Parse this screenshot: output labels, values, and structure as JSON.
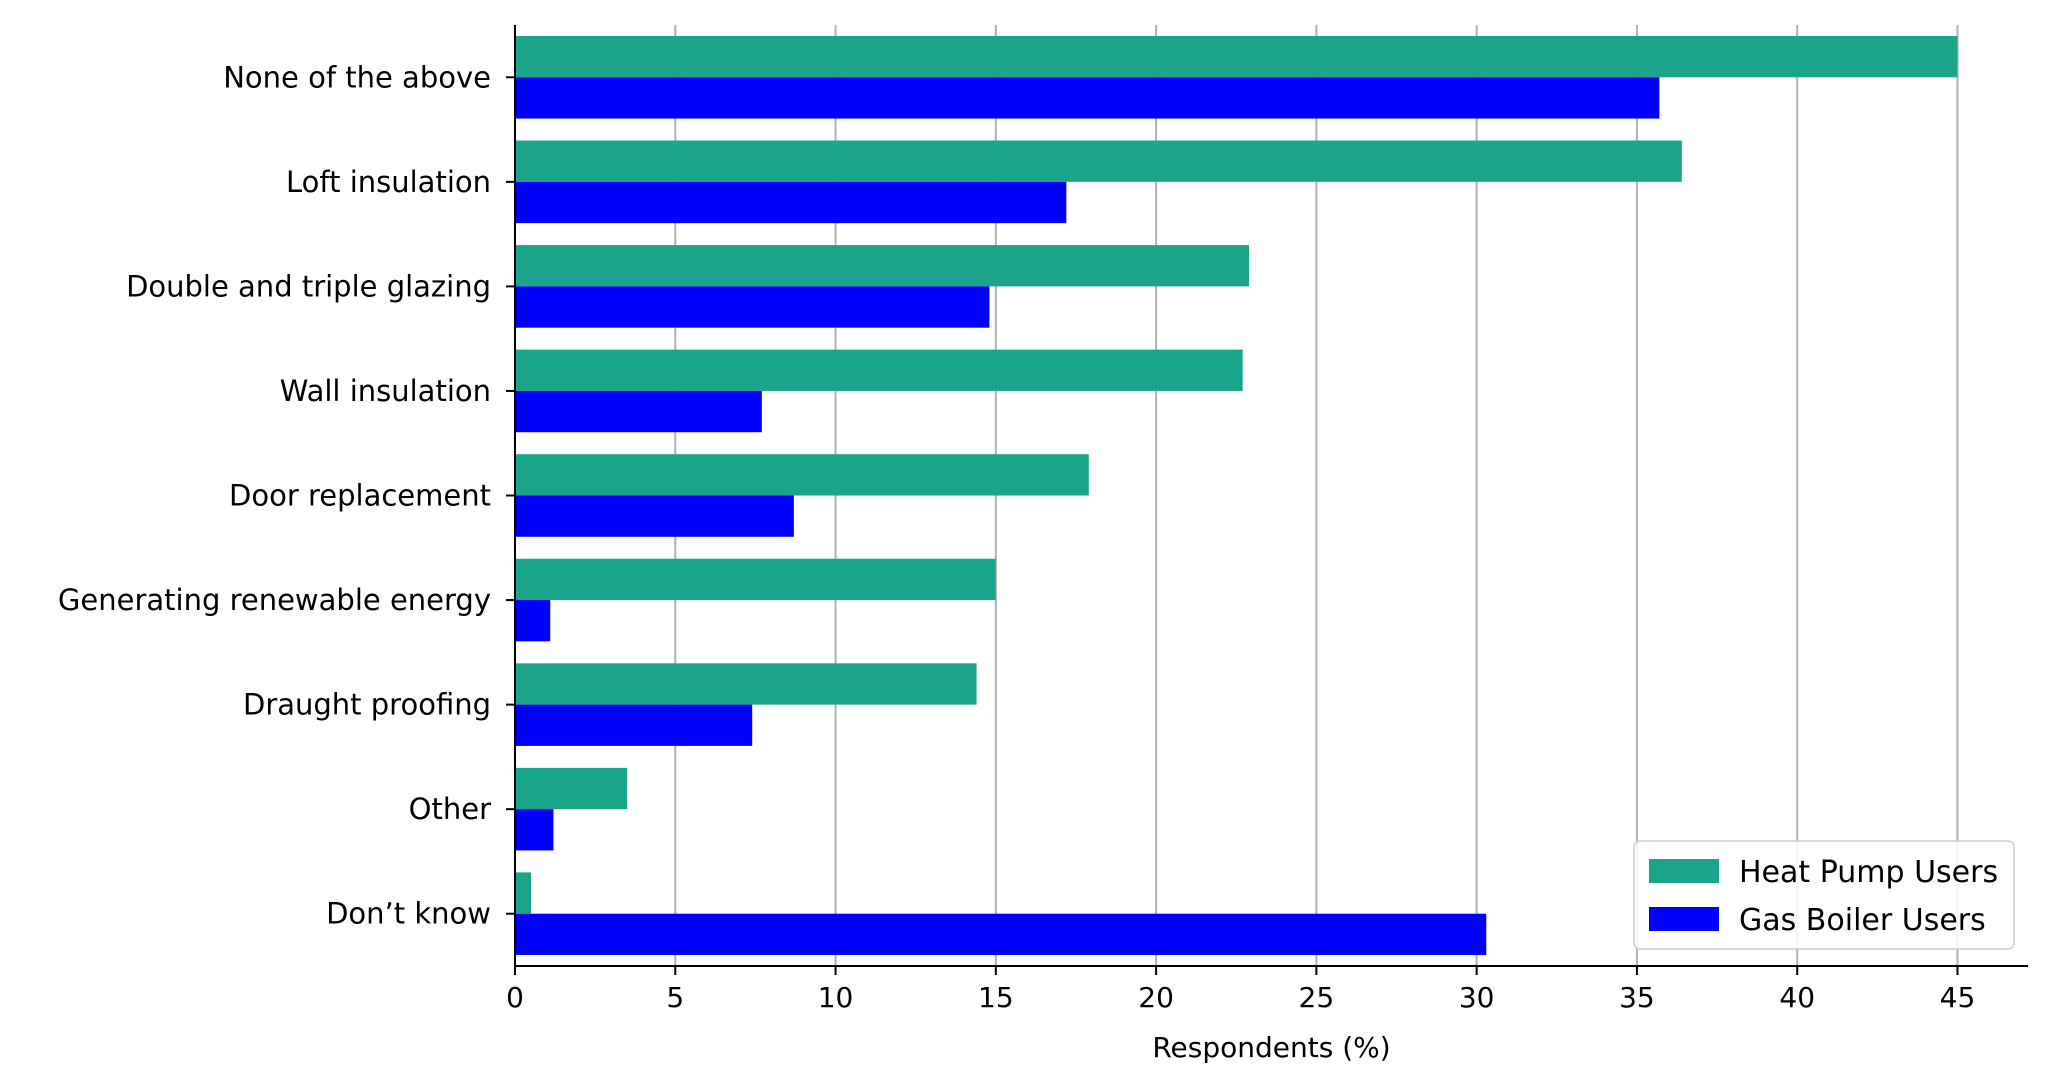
{
  "chart_data": {
    "type": "bar",
    "orientation": "horizontal",
    "categories": [
      "None of the above",
      "Loft insulation",
      "Double and triple glazing",
      "Wall insulation",
      "Door replacement",
      "Generating renewable energy",
      "Draught proofing",
      "Other",
      "Don’t know"
    ],
    "series": [
      {
        "name": "Heat Pump Users",
        "color": "#1aa58b",
        "values": [
          45.0,
          36.4,
          22.9,
          22.7,
          17.9,
          15.0,
          14.4,
          3.5,
          0.5
        ]
      },
      {
        "name": "Gas Boiler Users",
        "color": "#0000ff",
        "values": [
          35.7,
          17.2,
          14.8,
          7.7,
          8.7,
          1.1,
          7.4,
          1.2,
          30.3
        ]
      }
    ],
    "xlabel": "Respondents (%)",
    "ylabel": "",
    "xlim": [
      0,
      47.2
    ],
    "xticks": [
      0,
      5,
      10,
      15,
      20,
      25,
      30,
      35,
      40,
      45
    ],
    "grid": "vertical",
    "legend": "bottom-right"
  }
}
